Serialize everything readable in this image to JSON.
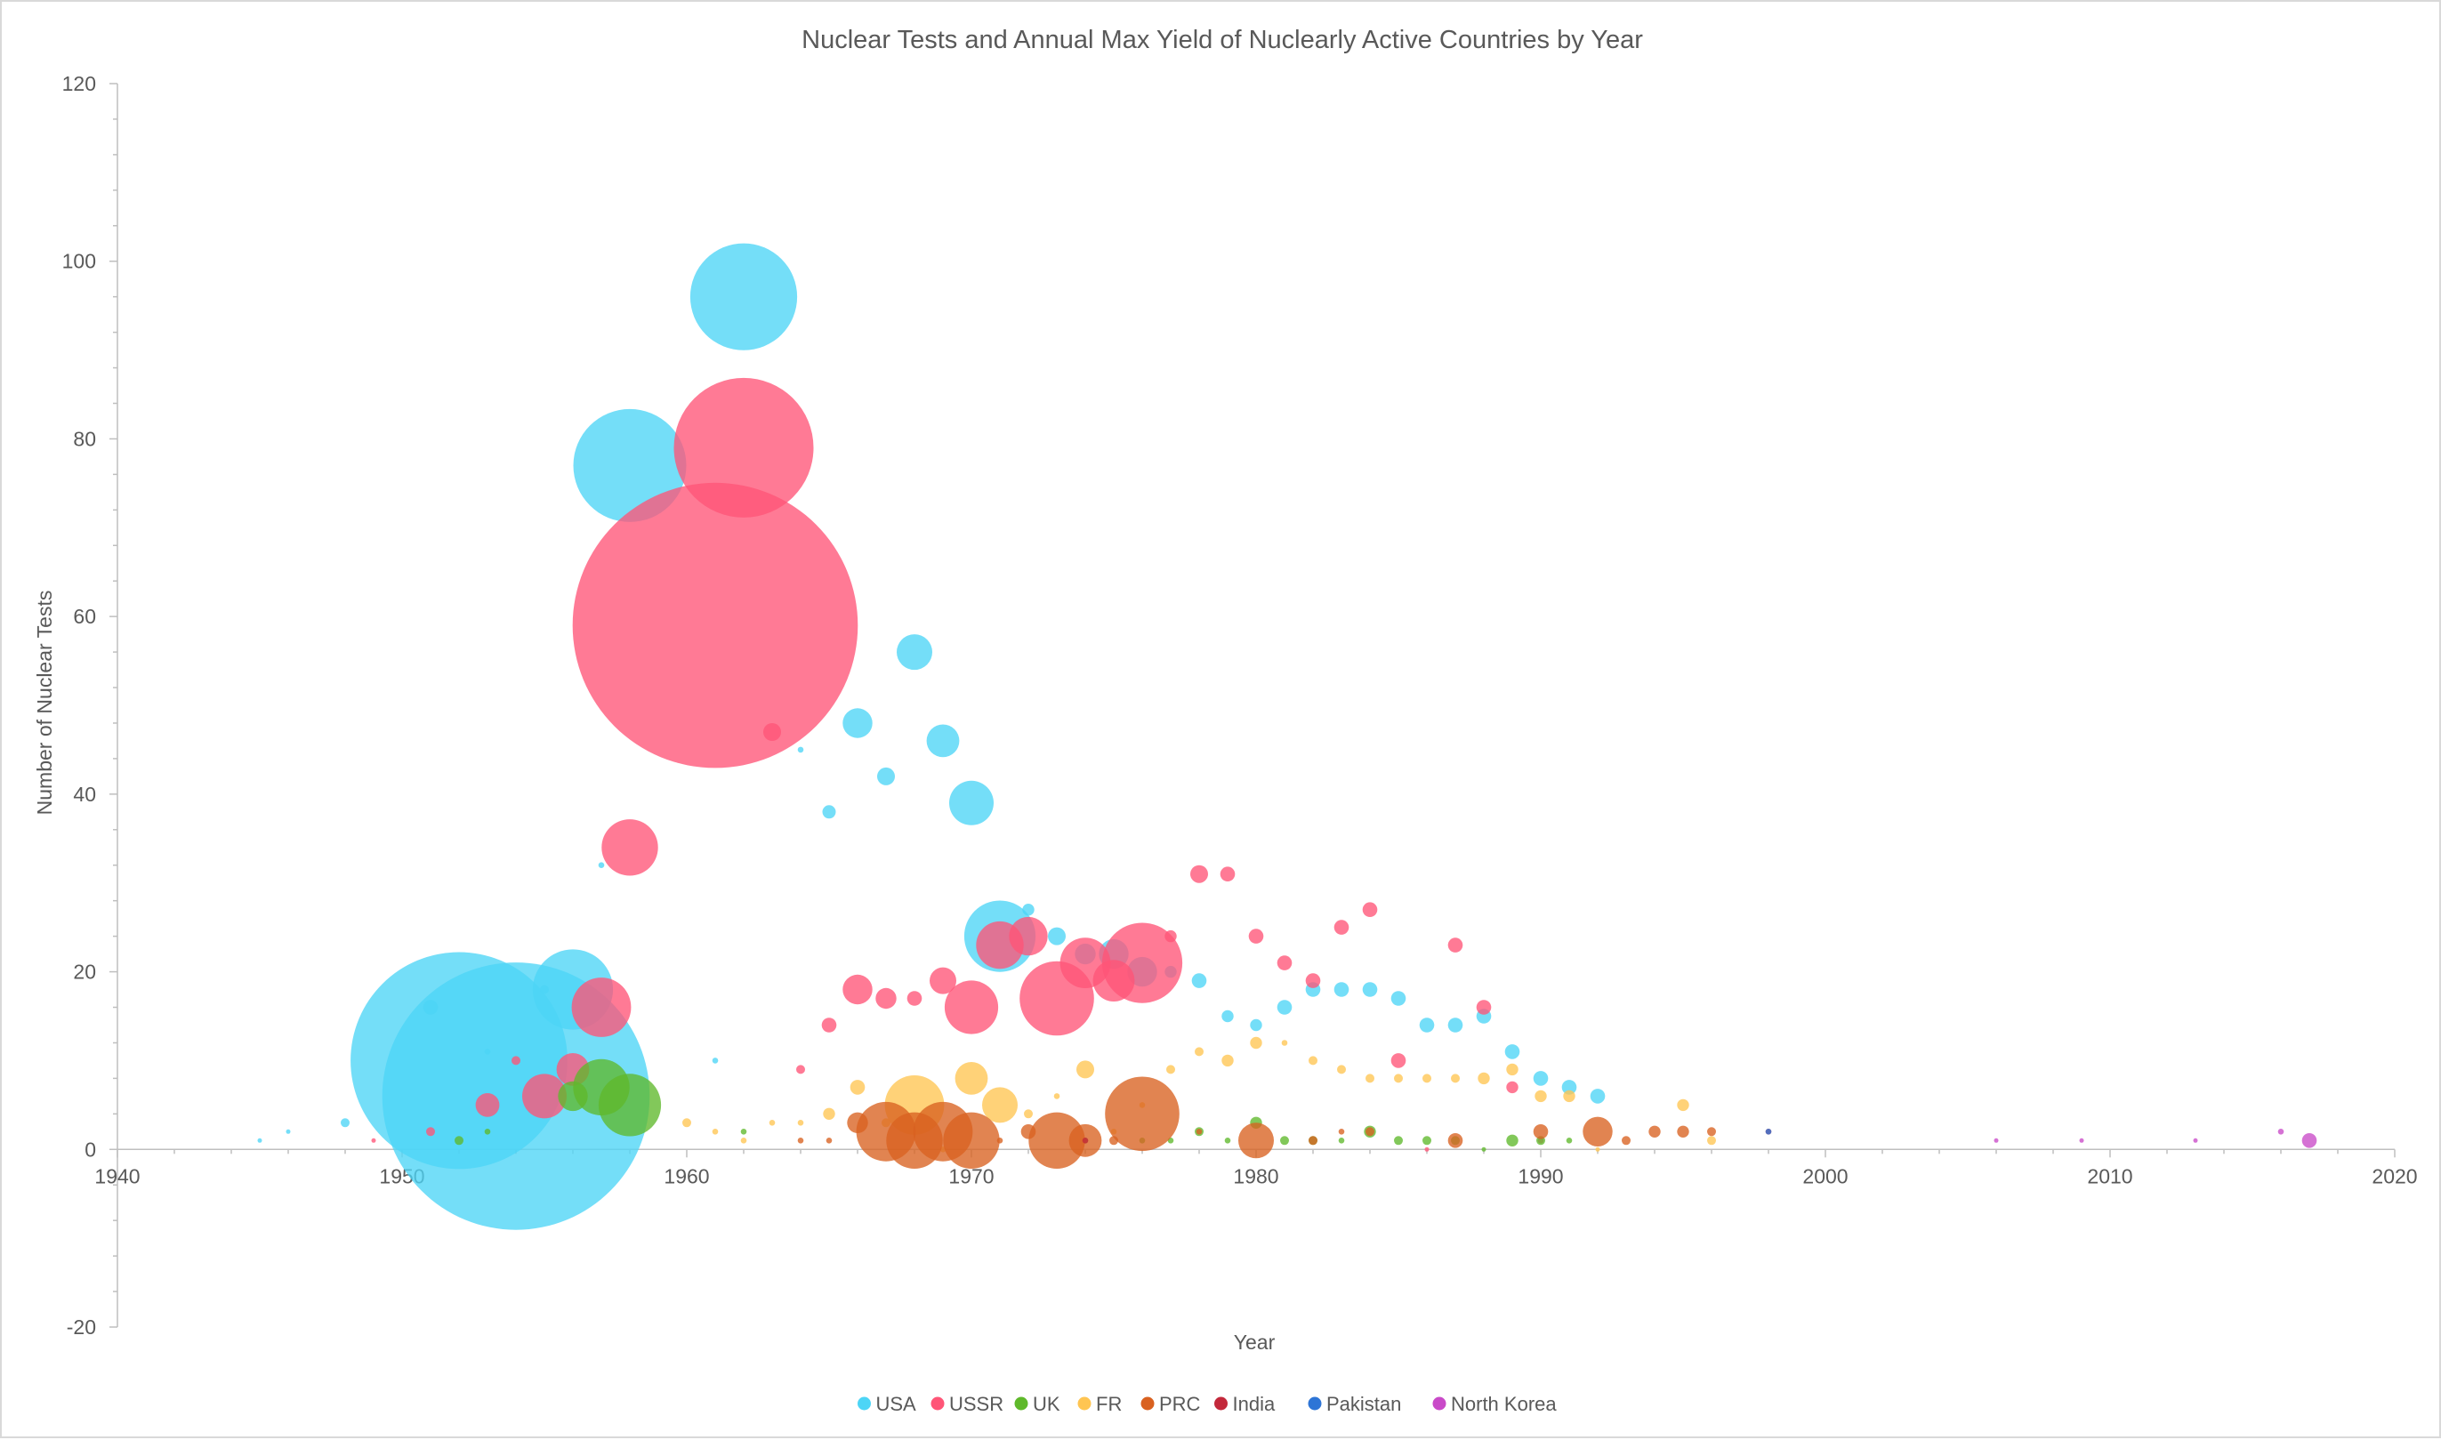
{
  "chart_data": {
    "type": "bubble",
    "title": "Nuclear Tests and Annual Max Yield of Nuclearly Active Countries by Year",
    "xlabel": "Year",
    "ylabel": "Number of Nuclear Tests",
    "xlim": [
      1940,
      2020
    ],
    "ylim": [
      -20,
      120
    ],
    "x_ticks": [
      "1940",
      "1950",
      "1960",
      "1970",
      "1980",
      "1990",
      "2000",
      "2010",
      "2020"
    ],
    "y_ticks": [
      "-20",
      "0",
      "20",
      "40",
      "60",
      "80",
      "100",
      "120"
    ],
    "grid": false,
    "legend_position": "bottom",
    "size_note": "bubble r = relative size",
    "series": [
      {
        "name": "USA",
        "color": "#4dd5f6",
        "points": [
          [
            1945,
            1,
            1.2
          ],
          [
            1946,
            2,
            1.5
          ],
          [
            1948,
            3,
            3
          ],
          [
            1951,
            16,
            5
          ],
          [
            1952,
            10,
            73
          ],
          [
            1953,
            11,
            2
          ],
          [
            1954,
            6,
            90
          ],
          [
            1955,
            18,
            3
          ],
          [
            1956,
            18,
            27
          ],
          [
            1957,
            32,
            2
          ],
          [
            1958,
            77,
            38
          ],
          [
            1961,
            10,
            2
          ],
          [
            1962,
            96,
            36
          ],
          [
            1964,
            45,
            2
          ],
          [
            1965,
            38,
            4.5
          ],
          [
            1966,
            48,
            10
          ],
          [
            1967,
            42,
            6
          ],
          [
            1968,
            56,
            12
          ],
          [
            1969,
            46,
            11
          ],
          [
            1970,
            39,
            15
          ],
          [
            1971,
            24,
            24
          ],
          [
            1972,
            27,
            4
          ],
          [
            1973,
            24,
            6
          ],
          [
            1974,
            22,
            7
          ],
          [
            1975,
            22,
            10
          ],
          [
            1976,
            20,
            10
          ],
          [
            1977,
            20,
            4
          ],
          [
            1978,
            19,
            5
          ],
          [
            1979,
            15,
            4
          ],
          [
            1980,
            14,
            4
          ],
          [
            1981,
            16,
            5
          ],
          [
            1982,
            18,
            5
          ],
          [
            1983,
            18,
            5
          ],
          [
            1984,
            18,
            5
          ],
          [
            1985,
            17,
            5
          ],
          [
            1986,
            14,
            5
          ],
          [
            1987,
            14,
            5
          ],
          [
            1988,
            15,
            5
          ],
          [
            1989,
            11,
            5
          ],
          [
            1990,
            8,
            5
          ],
          [
            1991,
            7,
            5
          ],
          [
            1992,
            6,
            5
          ]
        ]
      },
      {
        "name": "USSR",
        "color": "#ff5577",
        "points": [
          [
            1949,
            1,
            1.5
          ],
          [
            1951,
            2,
            3
          ],
          [
            1953,
            5,
            8
          ],
          [
            1954,
            10,
            3
          ],
          [
            1955,
            6,
            15
          ],
          [
            1956,
            9,
            11
          ],
          [
            1957,
            16,
            20
          ],
          [
            1958,
            34,
            19
          ],
          [
            1961,
            59,
            96
          ],
          [
            1962,
            79,
            47
          ],
          [
            1963,
            47,
            6
          ],
          [
            1964,
            9,
            3
          ],
          [
            1965,
            14,
            5
          ],
          [
            1966,
            18,
            10
          ],
          [
            1967,
            17,
            7
          ],
          [
            1968,
            17,
            5
          ],
          [
            1969,
            19,
            9
          ],
          [
            1970,
            16,
            18
          ],
          [
            1971,
            23,
            16
          ],
          [
            1972,
            24,
            13
          ],
          [
            1973,
            17,
            25
          ],
          [
            1974,
            21,
            17
          ],
          [
            1975,
            19,
            14
          ],
          [
            1976,
            21,
            27
          ],
          [
            1977,
            24,
            4
          ],
          [
            1978,
            31,
            6
          ],
          [
            1979,
            31,
            5
          ],
          [
            1980,
            24,
            5
          ],
          [
            1981,
            21,
            5
          ],
          [
            1982,
            19,
            5
          ],
          [
            1983,
            25,
            5
          ],
          [
            1984,
            27,
            5
          ],
          [
            1985,
            10,
            5
          ],
          [
            1986,
            0,
            1
          ],
          [
            1987,
            23,
            5
          ],
          [
            1988,
            16,
            5
          ],
          [
            1989,
            7,
            4
          ],
          [
            1990,
            1,
            2
          ]
        ]
      },
      {
        "name": "UK",
        "color": "#5fb92b",
        "points": [
          [
            1952,
            1,
            3
          ],
          [
            1953,
            2,
            2
          ],
          [
            1956,
            6,
            10
          ],
          [
            1957,
            7,
            19
          ],
          [
            1958,
            5,
            21
          ],
          [
            1962,
            2,
            2
          ],
          [
            1974,
            1,
            2
          ],
          [
            1976,
            1,
            2
          ],
          [
            1977,
            1,
            2
          ],
          [
            1978,
            2,
            3
          ],
          [
            1979,
            1,
            2
          ],
          [
            1980,
            3,
            4
          ],
          [
            1981,
            1,
            3
          ],
          [
            1982,
            1,
            3
          ],
          [
            1983,
            1,
            2
          ],
          [
            1984,
            2,
            4
          ],
          [
            1985,
            1,
            3
          ],
          [
            1986,
            1,
            3
          ],
          [
            1987,
            1,
            3
          ],
          [
            1988,
            0,
            1
          ],
          [
            1989,
            1,
            4
          ],
          [
            1990,
            1,
            3
          ],
          [
            1991,
            1,
            2
          ]
        ]
      },
      {
        "name": "FR",
        "color": "#ffc552",
        "points": [
          [
            1960,
            3,
            3
          ],
          [
            1961,
            2,
            2
          ],
          [
            1962,
            1,
            2
          ],
          [
            1963,
            3,
            2
          ],
          [
            1964,
            3,
            2
          ],
          [
            1965,
            4,
            4
          ],
          [
            1966,
            7,
            5
          ],
          [
            1967,
            3,
            3
          ],
          [
            1968,
            5,
            20
          ],
          [
            1969,
            0,
            2
          ],
          [
            1970,
            8,
            11
          ],
          [
            1971,
            5,
            12
          ],
          [
            1972,
            4,
            3
          ],
          [
            1973,
            6,
            2
          ],
          [
            1974,
            9,
            6
          ],
          [
            1975,
            2,
            2
          ],
          [
            1976,
            5,
            2
          ],
          [
            1977,
            9,
            3
          ],
          [
            1978,
            11,
            3
          ],
          [
            1979,
            10,
            4
          ],
          [
            1980,
            12,
            4
          ],
          [
            1981,
            12,
            2
          ],
          [
            1982,
            10,
            3
          ],
          [
            1983,
            9,
            3
          ],
          [
            1984,
            8,
            3
          ],
          [
            1985,
            8,
            3
          ],
          [
            1986,
            8,
            3
          ],
          [
            1987,
            8,
            3
          ],
          [
            1988,
            8,
            4
          ],
          [
            1989,
            9,
            4
          ],
          [
            1990,
            6,
            4
          ],
          [
            1991,
            6,
            4
          ],
          [
            1992,
            0,
            1
          ],
          [
            1995,
            5,
            4
          ],
          [
            1996,
            1,
            3
          ]
        ]
      },
      {
        "name": "PRC",
        "color": "#d96120",
        "points": [
          [
            1964,
            1,
            2
          ],
          [
            1965,
            1,
            2
          ],
          [
            1966,
            3,
            7
          ],
          [
            1967,
            2,
            20
          ],
          [
            1968,
            1,
            19
          ],
          [
            1969,
            2,
            20
          ],
          [
            1970,
            1,
            19
          ],
          [
            1971,
            1,
            2
          ],
          [
            1972,
            2,
            5
          ],
          [
            1973,
            1,
            19
          ],
          [
            1974,
            1,
            11
          ],
          [
            1975,
            1,
            3
          ],
          [
            1976,
            4,
            25
          ],
          [
            1978,
            2,
            2
          ],
          [
            1980,
            1,
            12
          ],
          [
            1982,
            1,
            3
          ],
          [
            1983,
            2,
            2
          ],
          [
            1984,
            2,
            3
          ],
          [
            1987,
            1,
            5
          ],
          [
            1990,
            2,
            5
          ],
          [
            1992,
            2,
            10
          ],
          [
            1993,
            1,
            3
          ],
          [
            1994,
            2,
            4
          ],
          [
            1995,
            2,
            4
          ],
          [
            1996,
            2,
            3
          ]
        ]
      },
      {
        "name": "India",
        "color": "#c3283b",
        "points": [
          [
            1974,
            1,
            2
          ],
          [
            1998,
            2,
            2
          ]
        ]
      },
      {
        "name": "Pakistan",
        "color": "#2e75d6",
        "points": [
          [
            1998,
            2,
            2
          ]
        ]
      },
      {
        "name": "North Korea",
        "color": "#c94ac8",
        "points": [
          [
            2006,
            1,
            1
          ],
          [
            2009,
            1,
            1
          ],
          [
            2013,
            1,
            1.5
          ],
          [
            2016,
            2,
            2
          ],
          [
            2017,
            1,
            5
          ]
        ]
      }
    ]
  }
}
